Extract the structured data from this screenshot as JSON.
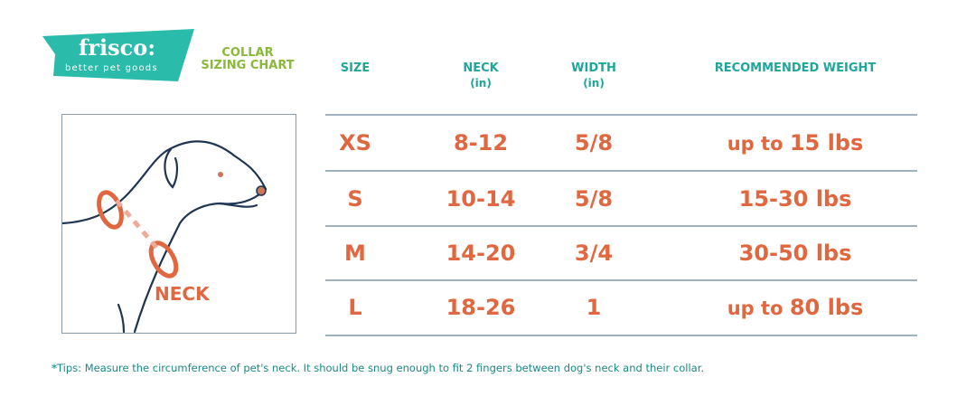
{
  "brand": {
    "name": "frisco:",
    "tagline": "better pet goods",
    "color": "#2bbbaa"
  },
  "title": {
    "line1": "COLLAR",
    "line2": "SIZING CHART"
  },
  "headers": {
    "size": "SIZE",
    "neck": "NECK",
    "neck_unit": "(in)",
    "width": "WIDTH",
    "width_unit": "(in)",
    "weight": "RECOMMENDED WEIGHT"
  },
  "rows": [
    {
      "size": "XS",
      "neck": "8-12",
      "width": "5/8",
      "weight_prefix": "up to",
      "weight": "15 lbs"
    },
    {
      "size": "S",
      "neck": "10-14",
      "width": "5/8",
      "weight_prefix": "",
      "weight": "15-30 lbs"
    },
    {
      "size": "M",
      "neck": "14-20",
      "width": "3/4",
      "weight_prefix": "",
      "weight": "30-50 lbs"
    },
    {
      "size": "L",
      "neck": "18-26",
      "width": "1",
      "weight_prefix": "up to",
      "weight": "80 lbs"
    }
  ],
  "illustration": {
    "label": "NECK"
  },
  "tips": {
    "star": "*",
    "text": "Tips: Measure the circumference of pet's neck. It should be snug enough to fit 2 fingers between dog's neck and their collar."
  },
  "colors": {
    "header": "#1fa69a",
    "title": "#8ab83a",
    "values": "#e0673f",
    "outline": "#1f3552"
  }
}
